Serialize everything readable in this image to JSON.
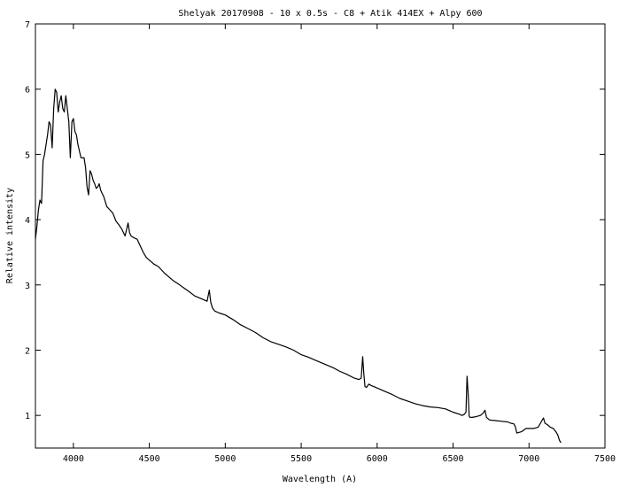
{
  "chart_data": {
    "type": "line",
    "title": "Shelyak 20170908 - 10 x 0.5s - C8 + Atik 414EX + Alpy 600",
    "xlabel": "Wavelength (A)",
    "ylabel": "Relative intensity",
    "xlim": [
      3750,
      7500
    ],
    "ylim": [
      0.5,
      7
    ],
    "xticks": [
      4000,
      4500,
      5000,
      5500,
      6000,
      6500,
      7000,
      7500
    ],
    "yticks": [
      1,
      2,
      3,
      4,
      5,
      6,
      7
    ],
    "grid": false,
    "legend": "none",
    "line_color": "#000000",
    "series": [
      {
        "x": [
          3750,
          3760,
          3770,
          3780,
          3790,
          3800,
          3810,
          3820,
          3830,
          3840,
          3850,
          3860,
          3870,
          3880,
          3890,
          3900,
          3910,
          3920,
          3930,
          3940,
          3950,
          3960,
          3970,
          3980,
          3990,
          4000,
          4010,
          4020,
          4030,
          4040,
          4050,
          4060,
          4070,
          4080,
          4090,
          4100,
          4110,
          4120,
          4130,
          4140,
          4150,
          4160,
          4170,
          4180,
          4190,
          4200,
          4220,
          4240,
          4260,
          4280,
          4300,
          4320,
          4340,
          4350,
          4360,
          4370,
          4380,
          4400,
          4420,
          4440,
          4460,
          4480,
          4500,
          4530,
          4560,
          4600,
          4630,
          4660,
          4700,
          4730,
          4760,
          4800,
          4840,
          4860,
          4880,
          4895,
          4905,
          4915,
          4930,
          4960,
          5000,
          5050,
          5100,
          5150,
          5200,
          5250,
          5300,
          5350,
          5400,
          5450,
          5500,
          5550,
          5600,
          5650,
          5700,
          5720,
          5750,
          5800,
          5850,
          5880,
          5895,
          5905,
          5912,
          5920,
          5930,
          5945,
          5960,
          6000,
          6050,
          6100,
          6150,
          6200,
          6250,
          6300,
          6350,
          6400,
          6450,
          6500,
          6540,
          6560,
          6575,
          6585,
          6592,
          6600,
          6606,
          6612,
          6625,
          6650,
          6680,
          6700,
          6710,
          6720,
          6740,
          6780,
          6820,
          6860,
          6880,
          6900,
          6910,
          6920,
          6950,
          6980,
          7000,
          7030,
          7060,
          7080,
          7095,
          7105,
          7120,
          7140,
          7160,
          7180,
          7190,
          7200,
          7210
        ],
        "y": [
          3.7,
          3.9,
          4.15,
          4.3,
          4.25,
          4.9,
          5.0,
          5.15,
          5.3,
          5.5,
          5.45,
          5.1,
          5.7,
          6.0,
          5.95,
          5.65,
          5.8,
          5.9,
          5.7,
          5.65,
          5.9,
          5.7,
          5.5,
          4.95,
          5.5,
          5.55,
          5.35,
          5.3,
          5.15,
          5.05,
          4.95,
          4.95,
          4.95,
          4.8,
          4.5,
          4.38,
          4.75,
          4.7,
          4.6,
          4.55,
          4.48,
          4.5,
          4.55,
          4.45,
          4.4,
          4.35,
          4.2,
          4.15,
          4.1,
          3.98,
          3.92,
          3.85,
          3.75,
          3.85,
          3.95,
          3.8,
          3.75,
          3.72,
          3.7,
          3.6,
          3.5,
          3.42,
          3.38,
          3.32,
          3.28,
          3.18,
          3.12,
          3.06,
          3.0,
          2.95,
          2.9,
          2.83,
          2.79,
          2.77,
          2.75,
          2.92,
          2.73,
          2.65,
          2.6,
          2.57,
          2.54,
          2.47,
          2.39,
          2.33,
          2.27,
          2.19,
          2.13,
          2.09,
          2.05,
          2.0,
          1.93,
          1.89,
          1.84,
          1.79,
          1.74,
          1.72,
          1.68,
          1.63,
          1.57,
          1.55,
          1.57,
          1.9,
          1.65,
          1.44,
          1.43,
          1.48,
          1.46,
          1.42,
          1.37,
          1.32,
          1.26,
          1.22,
          1.18,
          1.15,
          1.13,
          1.12,
          1.1,
          1.05,
          1.02,
          1.0,
          1.02,
          1.05,
          1.6,
          1.3,
          0.99,
          0.97,
          0.97,
          0.98,
          1.0,
          1.04,
          1.08,
          0.97,
          0.93,
          0.92,
          0.91,
          0.9,
          0.88,
          0.87,
          0.83,
          0.73,
          0.75,
          0.8,
          0.8,
          0.8,
          0.82,
          0.9,
          0.96,
          0.88,
          0.86,
          0.82,
          0.8,
          0.74,
          0.7,
          0.62,
          0.58
        ]
      }
    ]
  }
}
